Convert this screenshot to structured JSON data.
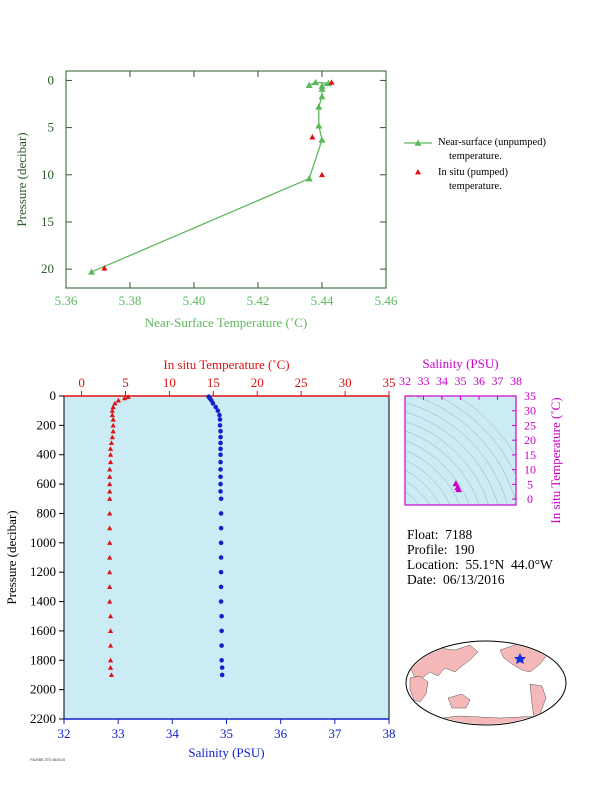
{
  "colors": {
    "green": "#5cb85c",
    "red": "#dd1111",
    "blue": "#1122cc",
    "magenta": "#cc00cc",
    "axis_dark_green": "#2b5a2b",
    "panel_fill": "#ccecf5",
    "land": "#f5b8b8",
    "ocean": "#ffffff"
  },
  "info": {
    "float": "Float:  7188",
    "profile": "Profile:  190",
    "location": "Location:  55.1°N  44.0°W",
    "date": "Date:  06/13/2016"
  },
  "legend": {
    "near_surface_line1": "Near-surface (unpumped)",
    "near_surface_line2": "temperature.",
    "in_situ_line1": "In situ (pumped)",
    "in_situ_line2": "temperature."
  },
  "footer_tag": "FSI/SBE-STS 06/2016",
  "chart_data": [
    {
      "type": "line",
      "xlabel": "Near-Surface Temperature (˚C)",
      "ylabel": "Pressure (decibar)",
      "xlim": [
        5.36,
        5.46
      ],
      "ylim": [
        22,
        -1
      ],
      "xticks": [
        "5.36",
        "5.38",
        "5.40",
        "5.42",
        "5.44",
        "5.46"
      ],
      "yticks": [
        "0",
        "5",
        "10",
        "15",
        "20"
      ],
      "series": [
        {
          "name": "Near-surface (unpumped) temperature.",
          "x": [
            5.368,
            5.436,
            5.44,
            5.439,
            5.439,
            5.44,
            5.44,
            5.44,
            5.442,
            5.438,
            5.436
          ],
          "y": [
            20.3,
            10.4,
            6.3,
            4.8,
            2.8,
            1.7,
            0.9,
            0.6,
            0.3,
            0.2,
            0.5
          ]
        },
        {
          "name": "In situ (pumped) temperature.",
          "x": [
            5.372,
            5.44,
            5.437,
            5.443
          ],
          "y": [
            19.9,
            10.0,
            6.0,
            0.2
          ]
        }
      ]
    },
    {
      "type": "scatter",
      "xlabel": "Salinity (PSU)",
      "x2label": "In situ Temperature (˚C)",
      "ylabel": "Pressure (decibar)",
      "xlim": [
        32,
        38
      ],
      "x2lim": [
        -2,
        35
      ],
      "ylim": [
        2200,
        0
      ],
      "xticks": [
        "32",
        "33",
        "34",
        "35",
        "36",
        "37",
        "38"
      ],
      "x2ticks": [
        "0",
        "5",
        "10",
        "15",
        "20",
        "25",
        "30",
        "35"
      ],
      "yticks": [
        "0",
        "200",
        "400",
        "600",
        "800",
        "1000",
        "1200",
        "1400",
        "1600",
        "1800",
        "2000",
        "2200"
      ],
      "series": [
        {
          "name": "In situ Temperature (˚C)",
          "x": [
            5.3,
            4.9,
            4.2,
            3.8,
            3.6,
            3.5,
            3.5,
            3.6,
            3.6,
            3.6,
            3.5,
            3.4,
            3.3,
            3.3,
            3.3,
            3.2,
            3.2,
            3.2,
            3.2,
            3.2,
            3.2,
            3.2,
            3.2,
            3.2,
            3.2,
            3.2,
            3.2,
            3.3,
            3.3,
            3.3,
            3.3,
            3.3,
            3.4
          ],
          "y": [
            5,
            15,
            30,
            50,
            75,
            100,
            130,
            160,
            200,
            240,
            280,
            320,
            360,
            400,
            450,
            500,
            550,
            600,
            650,
            700,
            800,
            900,
            1000,
            1100,
            1200,
            1300,
            1400,
            1500,
            1600,
            1700,
            1800,
            1850,
            1900
          ]
        },
        {
          "name": "Salinity (PSU)",
          "x": [
            34.67,
            34.69,
            34.72,
            34.75,
            34.8,
            34.84,
            34.87,
            34.88,
            34.88,
            34.89,
            34.89,
            34.89,
            34.89,
            34.89,
            34.89,
            34.89,
            34.89,
            34.89,
            34.89,
            34.9,
            34.9,
            34.9,
            34.9,
            34.9,
            34.9,
            34.9,
            34.9,
            34.91,
            34.91,
            34.91,
            34.91,
            34.92,
            34.92
          ],
          "y": [
            5,
            15,
            30,
            50,
            75,
            100,
            130,
            160,
            200,
            240,
            280,
            320,
            360,
            400,
            450,
            500,
            550,
            600,
            650,
            700,
            800,
            900,
            1000,
            1100,
            1200,
            1300,
            1400,
            1500,
            1600,
            1700,
            1800,
            1850,
            1900
          ]
        }
      ]
    },
    {
      "type": "scatter",
      "xlabel": "Salinity (PSU)",
      "ylabel": "In situ Temperature (˚C)",
      "xlim": [
        32,
        38
      ],
      "ylim": [
        -2,
        35
      ],
      "xticks": [
        "32",
        "33",
        "34",
        "35",
        "36",
        "37",
        "38"
      ],
      "yticks": [
        "0",
        "5",
        "10",
        "15",
        "20",
        "25",
        "30",
        "35"
      ],
      "series": [
        {
          "name": "T-S",
          "x": [
            34.75,
            34.85,
            34.9
          ],
          "y": [
            5.3,
            4.0,
            3.3
          ]
        }
      ]
    }
  ]
}
